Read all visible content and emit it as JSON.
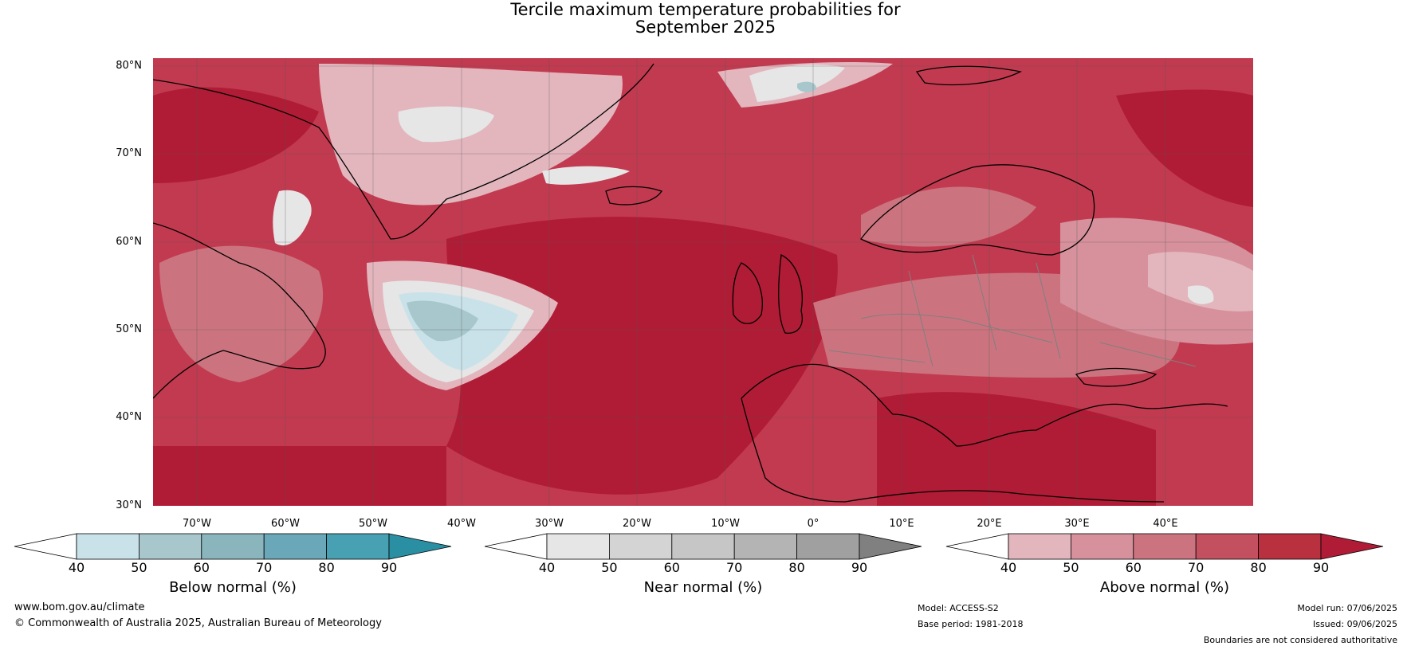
{
  "title": {
    "line1": "Tercile maximum temperature probabilities for",
    "line2": "September 2025"
  },
  "map": {
    "lat_labels": [
      "80°N",
      "70°N",
      "60°N",
      "50°N",
      "40°N",
      "30°N"
    ],
    "lon_labels": [
      "70°W",
      "60°W",
      "50°W",
      "40°W",
      "30°W",
      "20°W",
      "10°W",
      "0°",
      "10°E",
      "20°E",
      "30°E",
      "40°E"
    ],
    "colors": {
      "ocean_dark": "#b01c35",
      "ocean_mid": "#c23a50",
      "land_light": "#d4707e",
      "pale_pink": "#e3b6be",
      "near_normal": "#e6e6e6",
      "below": "#a8cdd6",
      "coastline": "#000000",
      "borders": "#7f7f7f"
    }
  },
  "colorbars": [
    {
      "title": "Below normal (%)",
      "ticks": [
        "40",
        "50",
        "60",
        "70",
        "80",
        "90"
      ],
      "colors": [
        "#ffffff",
        "#c9e2e9",
        "#a7c7cd",
        "#8ab5bd",
        "#6aa8b9",
        "#47a1b2",
        "#2a8fa2"
      ]
    },
    {
      "title": "Near normal (%)",
      "ticks": [
        "40",
        "50",
        "60",
        "70",
        "80",
        "90"
      ],
      "colors": [
        "#ffffff",
        "#e6e6e6",
        "#d4d4d4",
        "#c6c6c6",
        "#b4b4b4",
        "#a0a0a0",
        "#808080"
      ]
    },
    {
      "title": "Above normal (%)",
      "ticks": [
        "40",
        "50",
        "60",
        "70",
        "80",
        "90"
      ],
      "colors": [
        "#ffffff",
        "#e3b6be",
        "#d6919c",
        "#cb747f",
        "#c2505f",
        "#b9303f",
        "#b01c35"
      ]
    }
  ],
  "footer": {
    "website": "www.bom.gov.au/climate",
    "copyright": "© Commonwealth of Australia 2025, Australian Bureau of Meteorology",
    "model": "Model: ACCESS-S2",
    "base_period": "Base period: 1981-2018",
    "model_run": "Model run: 07/06/2025",
    "issued": "Issued: 09/06/2025",
    "disclaimer": "Boundaries are not considered authoritative"
  }
}
